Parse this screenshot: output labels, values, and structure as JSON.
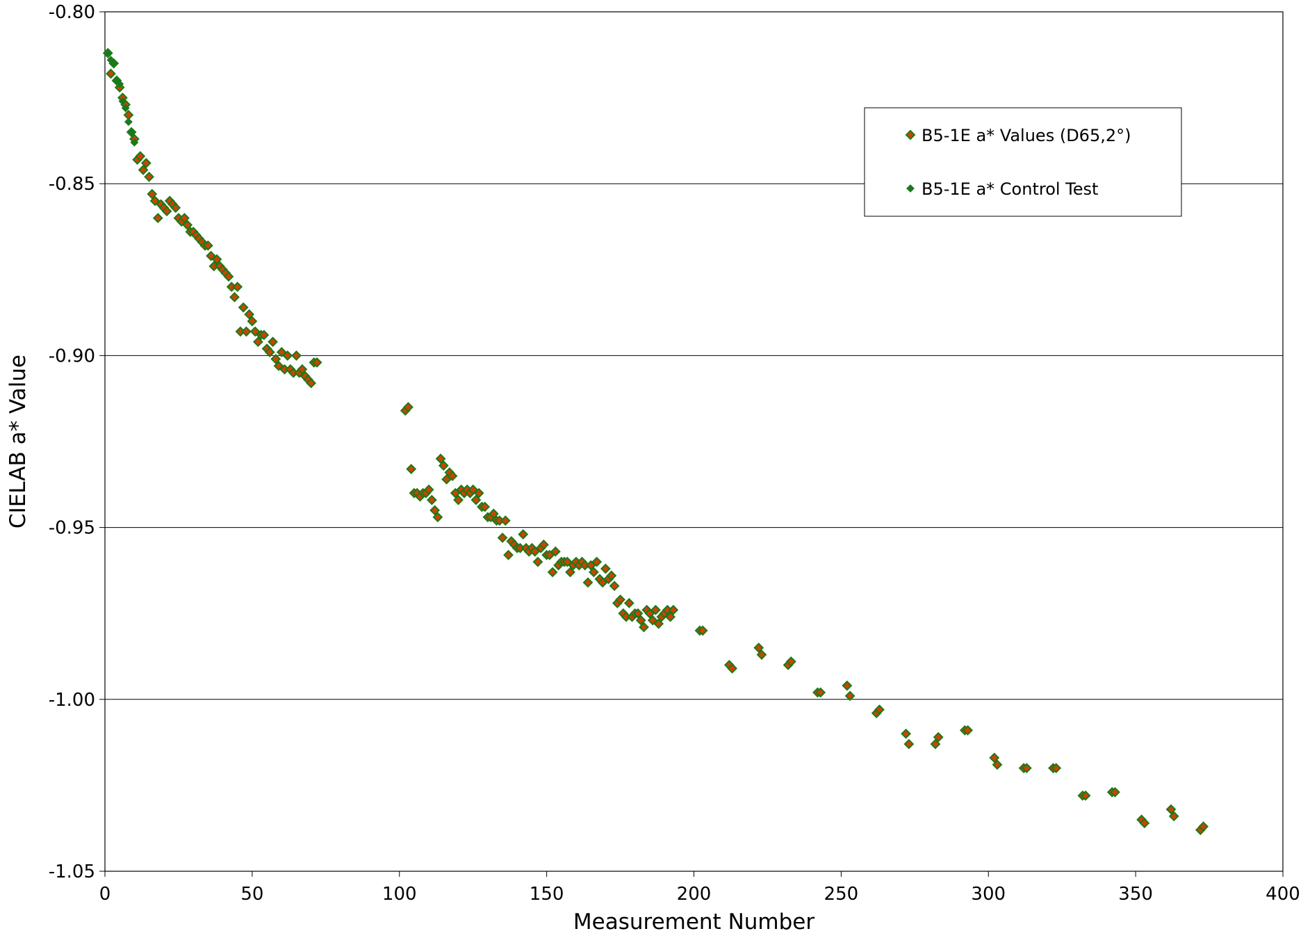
{
  "chart_data": {
    "type": "scatter",
    "title": "",
    "xlabel": "Measurement Number",
    "ylabel": "CIELAB a* Value",
    "xlim": [
      0,
      400
    ],
    "ylim": [
      -1.05,
      -0.8
    ],
    "xticks": [
      0,
      50,
      100,
      150,
      200,
      250,
      300,
      350,
      400
    ],
    "yticks": [
      -0.8,
      -0.85,
      -0.9,
      -0.95,
      -1.0,
      -1.05
    ],
    "xtick_labels": [
      "0",
      "50",
      "100",
      "150",
      "200",
      "250",
      "300",
      "350",
      "400"
    ],
    "ytick_labels": [
      "-0.80",
      "-0.85",
      "-0.90",
      "-0.95",
      "-1.00",
      "-1.05"
    ],
    "grid": "horizontal",
    "legend_position": "top-right",
    "series": [
      {
        "name": "B5-1E a* Values (D65,2°)",
        "marker": "diamond",
        "fill_color": "#cc4400",
        "edge_color": "#1a7a1a",
        "x": [
          1,
          2,
          3,
          4,
          5,
          6,
          7,
          8,
          9,
          10,
          11,
          12,
          13,
          14,
          15,
          16,
          17,
          18,
          19,
          20,
          21,
          22,
          23,
          24,
          25,
          26,
          27,
          28,
          29,
          30,
          31,
          32,
          33,
          34,
          35,
          36,
          37,
          38,
          39,
          40,
          41,
          42,
          43,
          44,
          45,
          46,
          47,
          48,
          49,
          50,
          51,
          52,
          53,
          54,
          55,
          56,
          57,
          58,
          59,
          60,
          61,
          62,
          63,
          64,
          65,
          66,
          67,
          68,
          69,
          70,
          71,
          72,
          102,
          103,
          104,
          105,
          106,
          107,
          108,
          109,
          110,
          111,
          112,
          113,
          114,
          115,
          116,
          117,
          118,
          119,
          120,
          121,
          122,
          123,
          124,
          125,
          126,
          127,
          128,
          129,
          130,
          131,
          132,
          133,
          134,
          135,
          136,
          137,
          138,
          139,
          140,
          141,
          142,
          143,
          144,
          145,
          146,
          147,
          148,
          149,
          150,
          151,
          152,
          153,
          154,
          155,
          156,
          157,
          158,
          159,
          160,
          161,
          162,
          163,
          164,
          165,
          166,
          167,
          168,
          169,
          170,
          171,
          172,
          173,
          174,
          175,
          176,
          177,
          178,
          179,
          180,
          181,
          182,
          183,
          184,
          185,
          186,
          187,
          188,
          189,
          190,
          191,
          192,
          193,
          202,
          203,
          212,
          213,
          222,
          223,
          232,
          233,
          242,
          243,
          252,
          253,
          262,
          263,
          272,
          273,
          282,
          283,
          292,
          293,
          302,
          303,
          312,
          313,
          322,
          323,
          332,
          333,
          342,
          343,
          352,
          353,
          362,
          363,
          372,
          373
        ],
        "y": [
          -0.812,
          -0.818,
          -0.815,
          -0.82,
          -0.822,
          -0.825,
          -0.827,
          -0.83,
          -0.835,
          -0.837,
          -0.843,
          -0.842,
          -0.846,
          -0.844,
          -0.848,
          -0.853,
          -0.855,
          -0.86,
          -0.856,
          -0.857,
          -0.858,
          -0.855,
          -0.856,
          -0.857,
          -0.86,
          -0.861,
          -0.86,
          -0.862,
          -0.864,
          -0.864,
          -0.865,
          -0.866,
          -0.867,
          -0.868,
          -0.868,
          -0.871,
          -0.874,
          -0.872,
          -0.874,
          -0.875,
          -0.876,
          -0.877,
          -0.88,
          -0.883,
          -0.88,
          -0.893,
          -0.886,
          -0.893,
          -0.888,
          -0.89,
          -0.893,
          -0.896,
          -0.894,
          -0.894,
          -0.898,
          -0.899,
          -0.896,
          -0.901,
          -0.903,
          -0.899,
          -0.904,
          -0.9,
          -0.904,
          -0.905,
          -0.9,
          -0.905,
          -0.904,
          -0.906,
          -0.907,
          -0.908,
          -0.902,
          -0.902,
          -0.916,
          -0.915,
          -0.933,
          -0.94,
          -0.94,
          -0.941,
          -0.94,
          -0.94,
          -0.939,
          -0.942,
          -0.945,
          -0.947,
          -0.93,
          -0.932,
          -0.936,
          -0.934,
          -0.935,
          -0.94,
          -0.942,
          -0.939,
          -0.94,
          -0.939,
          -0.94,
          -0.939,
          -0.942,
          -0.94,
          -0.944,
          -0.944,
          -0.947,
          -0.947,
          -0.946,
          -0.948,
          -0.948,
          -0.953,
          -0.948,
          -0.958,
          -0.954,
          -0.955,
          -0.956,
          -0.956,
          -0.952,
          -0.956,
          -0.957,
          -0.956,
          -0.957,
          -0.96,
          -0.956,
          -0.955,
          -0.958,
          -0.958,
          -0.963,
          -0.957,
          -0.961,
          -0.96,
          -0.96,
          -0.96,
          -0.963,
          -0.961,
          -0.96,
          -0.961,
          -0.96,
          -0.961,
          -0.966,
          -0.961,
          -0.963,
          -0.96,
          -0.965,
          -0.966,
          -0.962,
          -0.965,
          -0.964,
          -0.967,
          -0.972,
          -0.971,
          -0.975,
          -0.976,
          -0.972,
          -0.976,
          -0.975,
          -0.975,
          -0.977,
          -0.979,
          -0.974,
          -0.975,
          -0.977,
          -0.974,
          -0.978,
          -0.976,
          -0.975,
          -0.974,
          -0.976,
          -0.974,
          -0.98,
          -0.98,
          -0.99,
          -0.991,
          -0.985,
          -0.987,
          -0.99,
          -0.989,
          -0.998,
          -0.998,
          -0.996,
          -0.999,
          -1.004,
          -1.003,
          -1.01,
          -1.013,
          -1.013,
          -1.011,
          -1.009,
          -1.009,
          -1.017,
          -1.019,
          -1.02,
          -1.02,
          -1.02,
          -1.02,
          -1.028,
          -1.028,
          -1.027,
          -1.027,
          -1.035,
          -1.036,
          -1.032,
          -1.034,
          -1.038,
          -1.037
        ]
      },
      {
        "name": "B5-1E a* Control Test",
        "marker": "diamond",
        "fill_color": "#1a7a1a",
        "edge_color": "#1a7a1a",
        "x": [
          1,
          2,
          3,
          4,
          5,
          6,
          7,
          8,
          9,
          10
        ],
        "y": [
          -0.812,
          -0.814,
          -0.815,
          -0.82,
          -0.821,
          -0.826,
          -0.828,
          -0.832,
          -0.835,
          -0.838
        ]
      }
    ]
  }
}
